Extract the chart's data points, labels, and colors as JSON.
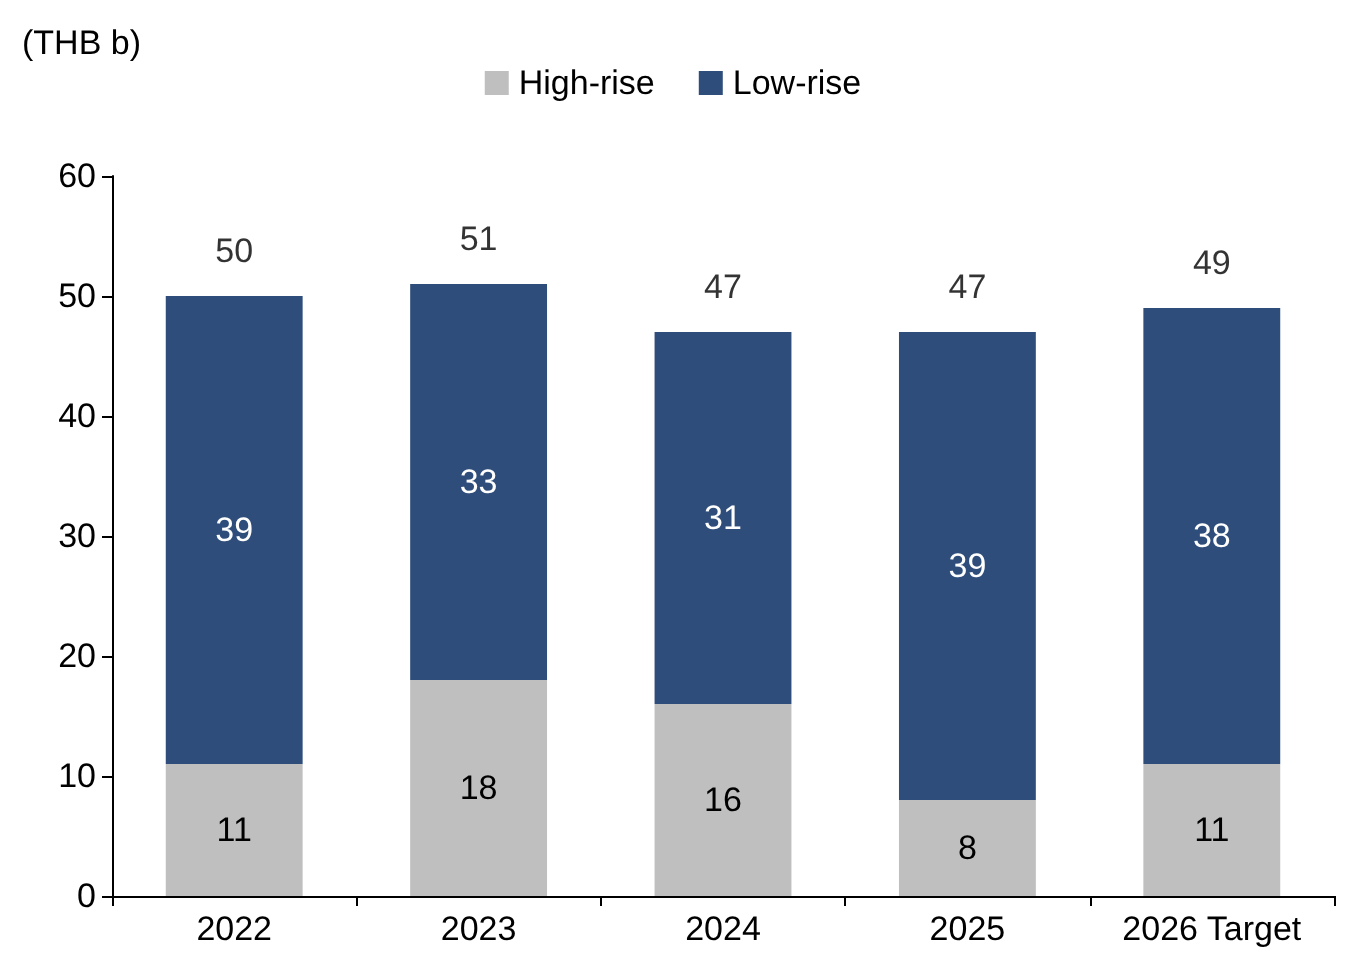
{
  "chart_data": {
    "type": "bar",
    "ylabel": "(THB b)",
    "categories": [
      "2022",
      "2023",
      "2024",
      "2025",
      "2026 Target"
    ],
    "series": [
      {
        "name": "High-rise",
        "color": "#bfbfbf",
        "values": [
          11,
          18,
          16,
          8,
          11
        ]
      },
      {
        "name": "Low-rise",
        "color": "#2e4d7b",
        "values": [
          39,
          33,
          31,
          39,
          38
        ]
      }
    ],
    "stacked": true,
    "data_labels": true,
    "totals": [
      "50",
      "51",
      "47",
      "47",
      "49"
    ],
    "ylim": [
      0,
      60
    ],
    "yticks": [
      0,
      10,
      20,
      30,
      40,
      50,
      60
    ],
    "grid": false,
    "legend": "top"
  }
}
